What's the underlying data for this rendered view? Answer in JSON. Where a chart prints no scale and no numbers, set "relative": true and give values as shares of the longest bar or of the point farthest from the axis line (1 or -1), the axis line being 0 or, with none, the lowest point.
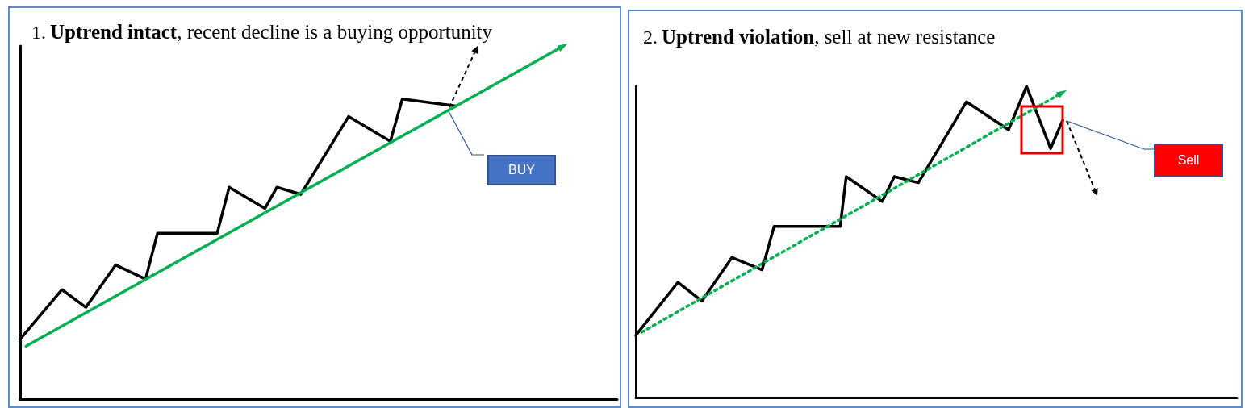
{
  "chart_data": [
    {
      "type": "line",
      "title": "1. Uptrend intact, recent decline is a buying opportunity",
      "relative": true,
      "grid": false,
      "annotations": [
        "BUY"
      ],
      "categories": [
        null,
        null,
        null,
        null,
        null,
        null,
        null,
        null,
        null,
        null,
        null,
        null,
        null,
        null,
        null,
        null,
        null,
        null,
        null,
        null,
        null,
        null,
        null,
        null,
        null,
        null,
        null,
        null,
        null,
        null,
        null,
        null,
        null,
        null,
        null,
        null,
        null,
        null,
        null,
        null,
        null,
        null,
        null,
        null,
        null,
        null,
        null,
        null,
        null,
        null,
        null,
        null,
        null,
        null,
        null,
        null,
        null,
        null,
        null,
        null,
        null,
        null,
        null,
        null,
        null,
        null,
        null,
        null,
        null,
        null,
        null,
        null,
        null,
        null,
        null,
        null,
        null,
        null,
        null,
        null,
        null,
        null,
        null,
        null,
        null,
        null,
        null,
        null,
        null,
        null,
        null,
        null,
        null,
        null,
        null,
        null,
        null,
        null,
        null,
        null,
        null
      ],
      "series": [
        {
          "color": "#000000",
          "line_style": "solid",
          "values": [
            0.17,
            null,
            null,
            null,
            null,
            null,
            null,
            0.31,
            null,
            null,
            null,
            0.26,
            null,
            null,
            null,
            null,
            0.38,
            null,
            null,
            null,
            null,
            0.34,
            null,
            0.47,
            null,
            null,
            null,
            null,
            null,
            null,
            null,
            null,
            null,
            0.47,
            null,
            0.6,
            null,
            null,
            null,
            null,
            null,
            0.54,
            null,
            0.6,
            null,
            null,
            null,
            0.58,
            null,
            null,
            null,
            null,
            null,
            null,
            null,
            0.8,
            null,
            null,
            null,
            null,
            null,
            null,
            0.73,
            null,
            0.85,
            null,
            null,
            null,
            null,
            null,
            null,
            null,
            null,
            0.83,
            null,
            null,
            null,
            null,
            null,
            null,
            null,
            null,
            null,
            null,
            null,
            null,
            null,
            null,
            null,
            null,
            null,
            null,
            null,
            null,
            null,
            null,
            null,
            null,
            null,
            null,
            null
          ]
        },
        {
          "color": "#00b050",
          "line_style": "solid",
          "values": [
            null,
            0.15,
            null,
            null,
            null,
            null,
            null,
            null,
            null,
            null,
            null,
            null,
            null,
            null,
            null,
            null,
            null,
            null,
            null,
            null,
            null,
            null,
            null,
            null,
            null,
            null,
            null,
            null,
            null,
            null,
            null,
            null,
            null,
            null,
            null,
            null,
            null,
            null,
            null,
            null,
            null,
            null,
            null,
            null,
            null,
            null,
            null,
            null,
            null,
            null,
            null,
            null,
            null,
            null,
            null,
            null,
            null,
            null,
            null,
            null,
            null,
            null,
            null,
            null,
            null,
            null,
            null,
            null,
            null,
            null,
            null,
            null,
            null,
            null,
            null,
            null,
            null,
            null,
            null,
            null,
            null,
            null,
            null,
            null,
            null,
            null,
            null,
            null,
            null,
            null,
            null,
            1,
            null,
            null,
            null,
            null,
            null,
            null,
            null,
            null,
            null
          ]
        }
      ]
    },
    {
      "type": "line",
      "title": "2. Uptrend violation, sell at new resistance",
      "relative": true,
      "grid": false,
      "annotations": [
        "Sell"
      ],
      "categories": [
        null,
        null,
        null,
        null,
        null,
        null,
        null,
        null,
        null,
        null,
        null,
        null,
        null,
        null,
        null,
        null,
        null,
        null,
        null,
        null,
        null,
        null,
        null,
        null,
        null,
        null,
        null,
        null,
        null,
        null,
        null,
        null,
        null,
        null,
        null,
        null,
        null,
        null,
        null,
        null,
        null,
        null,
        null,
        null,
        null,
        null,
        null,
        null,
        null,
        null,
        null,
        null,
        null,
        null,
        null,
        null,
        null,
        null,
        null,
        null,
        null,
        null,
        null,
        null,
        null,
        null,
        null,
        null,
        null,
        null,
        null,
        null,
        null,
        null,
        null,
        null,
        null,
        null,
        null,
        null,
        null,
        null,
        null,
        null,
        null,
        null,
        null,
        null,
        null,
        null,
        null,
        null,
        null,
        null,
        null,
        null,
        null,
        null,
        null,
        null,
        null
      ],
      "series": [
        {
          "color": "#000000",
          "line_style": "solid",
          "values": [
            0.2,
            null,
            null,
            null,
            null,
            null,
            null,
            0.37,
            null,
            null,
            null,
            0.31,
            null,
            null,
            null,
            null,
            0.45,
            null,
            null,
            null,
            null,
            0.41,
            null,
            0.55,
            null,
            null,
            null,
            null,
            null,
            null,
            null,
            null,
            null,
            null,
            0.55,
            0.71,
            null,
            null,
            null,
            null,
            null,
            0.63,
            null,
            0.71,
            null,
            null,
            null,
            0.69,
            null,
            null,
            null,
            null,
            null,
            null,
            null,
            0.95,
            null,
            null,
            null,
            null,
            null,
            null,
            0.86,
            null,
            null,
            1,
            null,
            null,
            null,
            0.8,
            null,
            0.89,
            null,
            null,
            null,
            null,
            null,
            null,
            null,
            null,
            null,
            null,
            null,
            null,
            null,
            null,
            null,
            null,
            null,
            null,
            null,
            null,
            null,
            null,
            null,
            null,
            null,
            null,
            null,
            null,
            null
          ]
        },
        {
          "color": "#00b050",
          "line_style": "dotted",
          "values": [
            null,
            0.21,
            null,
            null,
            null,
            null,
            null,
            null,
            null,
            null,
            null,
            null,
            null,
            null,
            null,
            null,
            null,
            null,
            null,
            null,
            null,
            null,
            null,
            null,
            null,
            null,
            null,
            null,
            null,
            null,
            null,
            null,
            null,
            null,
            null,
            null,
            null,
            null,
            null,
            null,
            null,
            null,
            null,
            null,
            null,
            null,
            null,
            null,
            null,
            null,
            null,
            null,
            null,
            null,
            null,
            null,
            null,
            null,
            null,
            null,
            null,
            null,
            null,
            null,
            null,
            null,
            null,
            null,
            null,
            null,
            null,
            0.98,
            null,
            null,
            null,
            null,
            null,
            null,
            null,
            null,
            null,
            null,
            null,
            null,
            null,
            null,
            null,
            null,
            null,
            null,
            null,
            null,
            null,
            null,
            null,
            null,
            null,
            null,
            null,
            null,
            null
          ]
        }
      ]
    }
  ]
}
